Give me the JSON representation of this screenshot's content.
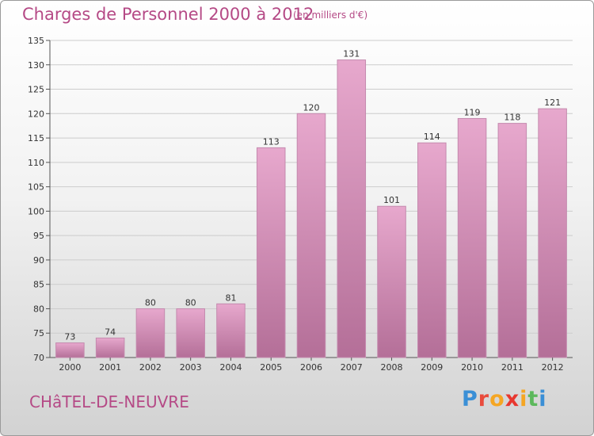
{
  "title": "Charges de Personnel 2000 à 2012",
  "subtitle": "(en milliers d'€)",
  "place": "CHâTEL-DE-NEUVRE",
  "logo": {
    "text": "Proxiti",
    "letters": [
      "P",
      "r",
      "o",
      "x",
      "i",
      "t",
      "i"
    ],
    "colors": [
      "#3a8fd6",
      "#e94b3c",
      "#f5a623",
      "#e8372f",
      "#f5a623",
      "#5cb85c",
      "#3a8fd6"
    ]
  },
  "colors": {
    "bar_top": "#e7a8cd",
    "bar_bottom": "#b46f98",
    "bar_edge": "#c48aae",
    "title": "#b54a86",
    "grid": "#cccccc"
  },
  "chart_data": {
    "type": "bar",
    "title": "Charges de Personnel 2000 à 2012",
    "subtitle": "(en milliers d'€)",
    "categories": [
      "2000",
      "2001",
      "2002",
      "2003",
      "2004",
      "2005",
      "2006",
      "2007",
      "2008",
      "2009",
      "2010",
      "2011",
      "2012"
    ],
    "values": [
      73,
      74,
      80,
      80,
      81,
      113,
      120,
      131,
      101,
      114,
      119,
      118,
      121
    ],
    "ylim": [
      70,
      135
    ],
    "yticks": [
      70,
      75,
      80,
      85,
      90,
      95,
      100,
      105,
      110,
      115,
      120,
      125,
      130,
      135
    ],
    "grid": true,
    "legend": "none"
  }
}
